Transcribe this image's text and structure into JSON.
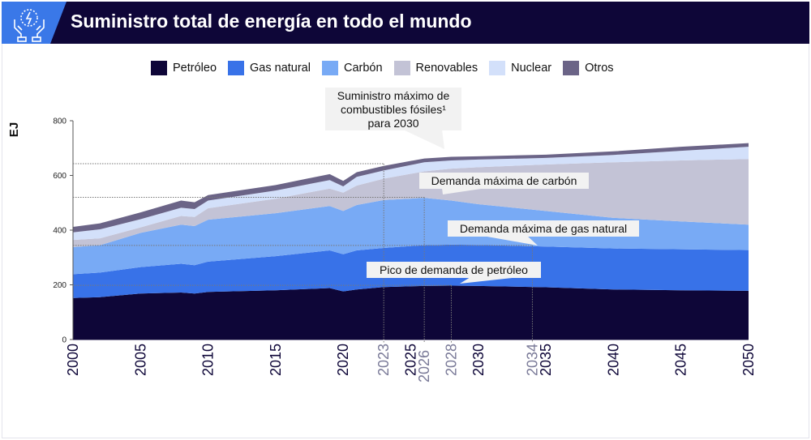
{
  "header": {
    "title": "Suministro total de energía en todo el mundo",
    "icon": "hands-energy-icon"
  },
  "colors": {
    "header_bg": "#0e0638",
    "icon_bg": "#3a78e8"
  },
  "chart_data": {
    "type": "area",
    "stacked": true,
    "title": "Suministro total de energía en todo el mundo",
    "ylabel": "EJ",
    "xlabel": "",
    "ylim": [
      0,
      800
    ],
    "yticks": [
      0,
      200,
      400,
      600,
      800
    ],
    "xlim": [
      2000,
      2050
    ],
    "xticks": [
      2000,
      2005,
      2010,
      2015,
      2020,
      2025,
      2030,
      2035,
      2040,
      2045,
      2050
    ],
    "xticks_highlight": [
      2023,
      2026,
      2028,
      2034
    ],
    "legend_position": "top",
    "x": [
      2000,
      2002,
      2005,
      2008,
      2009,
      2010,
      2015,
      2019,
      2020,
      2021,
      2023,
      2026,
      2028,
      2030,
      2035,
      2040,
      2045,
      2050
    ],
    "series": [
      {
        "name": "Petróleo",
        "color": "#0e0638",
        "values": [
          152,
          155,
          168,
          172,
          168,
          174,
          180,
          188,
          176,
          183,
          192,
          196,
          197,
          196,
          191,
          183,
          180,
          178
        ]
      },
      {
        "name": "Gas natural",
        "color": "#3872e8",
        "values": [
          87,
          90,
          97,
          105,
          104,
          111,
          125,
          138,
          136,
          143,
          143,
          149,
          150,
          150,
          149,
          150,
          150,
          149
        ]
      },
      {
        "name": "Carbón",
        "color": "#78aaf5",
        "values": [
          99,
          100,
          125,
          143,
          143,
          153,
          157,
          162,
          158,
          166,
          175,
          173,
          161,
          149,
          130,
          112,
          102,
          93
        ]
      },
      {
        "name": "Renovables",
        "color": "#c3c3d6",
        "values": [
          26,
          25,
          20,
          32,
          33,
          42,
          53,
          64,
          67,
          71,
          78,
          97,
          117,
          135,
          170,
          203,
          223,
          240
        ]
      },
      {
        "name": "Nuclear",
        "color": "#d3e0fa",
        "values": [
          28,
          33,
          30,
          30,
          29,
          28,
          30,
          31,
          23,
          32,
          30,
          33,
          30,
          28,
          24,
          27,
          35,
          45
        ]
      },
      {
        "name": "Otros",
        "color": "#6b6487",
        "values": [
          20,
          22,
          25,
          26,
          25,
          20,
          20,
          22,
          20,
          17,
          17,
          14,
          13,
          12,
          12,
          13,
          15,
          13
        ]
      }
    ],
    "reference_lines": [
      {
        "year": 2023,
        "value": 643
      },
      {
        "year": 2026,
        "value": 520
      },
      {
        "year": 2028,
        "value": 198
      },
      {
        "year": 2034,
        "value": 344
      }
    ],
    "annotations": [
      {
        "lines": [
          "Suministro máximo de",
          "combustibles fósiles¹",
          "para 2030"
        ]
      },
      {
        "lines": [
          "Demanda máxima de carbón"
        ]
      },
      {
        "lines": [
          "Demanda máxima de gas natural"
        ]
      },
      {
        "lines": [
          "Pico de demanda de petróleo"
        ]
      }
    ]
  }
}
